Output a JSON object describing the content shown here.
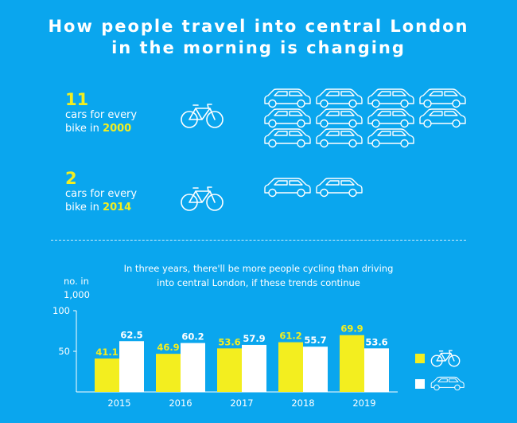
{
  "title_line1": "How people travel into central London",
  "title_line2": "in the morning is changing",
  "stats": [
    {
      "number": "11",
      "line1": "cars for every",
      "line2_prefix": "bike in ",
      "year": "2000",
      "cars": 11
    },
    {
      "number": "2",
      "line1": "cars for every",
      "line2_prefix": "bike in ",
      "year": "2014",
      "cars": 2
    }
  ],
  "subtitle_line1": "In three years, there'll be more people cycling than driving",
  "subtitle_line2": "into central London, if these trends continue",
  "unit_line1": "no. in",
  "unit_line2": "1,000",
  "colors": {
    "background": "#0aa6ee",
    "bike": "#f3ee1f",
    "car": "#ffffff"
  },
  "chart_data": {
    "type": "bar",
    "categories": [
      "2015",
      "2016",
      "2017",
      "2018",
      "2019"
    ],
    "series": [
      {
        "key": "bike",
        "values": [
          41.1,
          46.9,
          53.6,
          61.2,
          69.9
        ]
      },
      {
        "key": "car",
        "values": [
          62.5,
          60.2,
          57.9,
          55.7,
          53.6
        ]
      }
    ],
    "ylim": [
      0,
      100
    ],
    "yticks": [
      50,
      100
    ],
    "legend": [
      {
        "series": "bike",
        "icon": "bicycle-icon"
      },
      {
        "series": "car",
        "icon": "car-icon"
      }
    ],
    "legend_position": "right"
  }
}
